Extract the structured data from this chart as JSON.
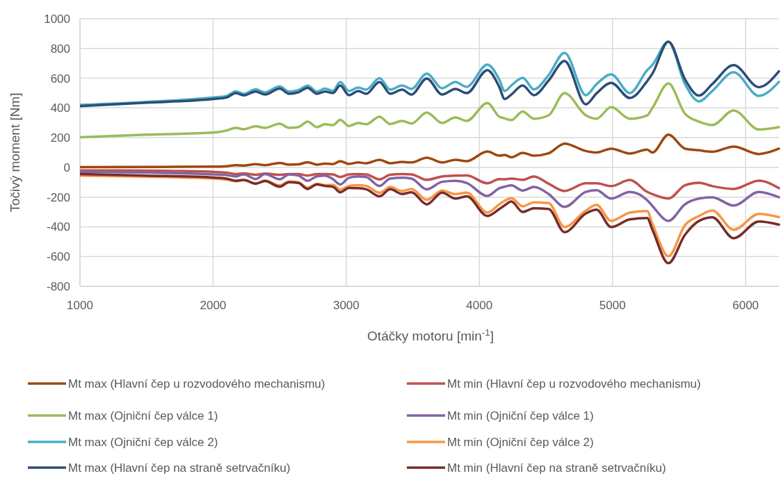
{
  "chart_data": {
    "type": "line",
    "xlabel": "Otáčky motoru [min$^{-1}$]",
    "ylabel": "Točivý moment [Nm]",
    "xlim": [
      1000,
      6250
    ],
    "xticks": [
      1000,
      2000,
      3000,
      4000,
      5000,
      6000
    ],
    "ylim": [
      -800,
      1000
    ],
    "yticks": [
      -800,
      -600,
      -400,
      -200,
      0,
      200,
      400,
      600,
      800,
      1000
    ],
    "grid": true,
    "legend": "bottom",
    "marker": "none",
    "line_style": "solid",
    "x": [
      1000,
      1500,
      2000,
      2100,
      2170,
      2230,
      2320,
      2390,
      2500,
      2570,
      2640,
      2710,
      2780,
      2840,
      2900,
      2955,
      3020,
      3090,
      3150,
      3250,
      3330,
      3420,
      3490,
      3605,
      3720,
      3820,
      3905,
      4060,
      4150,
      4190,
      4240,
      4325,
      4410,
      4520,
      4640,
      4800,
      4880,
      4990,
      5130,
      5260,
      5300,
      5420,
      5545,
      5650,
      5750,
      5910,
      6100,
      6250
    ],
    "series": [
      {
        "name": "Mt max (Hlavní čep u rozvodového mechanismu)",
        "color": "#9e480e",
        "values": [
          2,
          3,
          5,
          8,
          15,
          12,
          22,
          15,
          30,
          18,
          20,
          35,
          18,
          25,
          22,
          42,
          23,
          33,
          28,
          51,
          28,
          37,
          33,
          65,
          33,
          51,
          42,
          107,
          79,
          84,
          68,
          98,
          79,
          95,
          160,
          110,
          100,
          126,
          93,
          120,
          100,
          220,
          126,
          115,
          105,
          140,
          90,
          126
        ]
      },
      {
        "name": "Mt min (Hlavní čep u rozvodového mechanismu)",
        "color": "#c0504d",
        "values": [
          -20,
          -22,
          -30,
          -35,
          -45,
          -40,
          -50,
          -42,
          -50,
          -45,
          -45,
          -55,
          -45,
          -45,
          -47,
          -65,
          -47,
          -45,
          -47,
          -81,
          -50,
          -45,
          -47,
          -84,
          -61,
          -55,
          -54,
          -107,
          -79,
          -80,
          -75,
          -84,
          -61,
          -110,
          -159,
          -107,
          -107,
          -126,
          -85,
          -164,
          -180,
          -210,
          -120,
          -103,
          -126,
          -145,
          -89,
          -140
        ]
      },
      {
        "name": "Mt max (Ojniční čep válce 1)",
        "color": "#9bbb59",
        "values": [
          203,
          220,
          234,
          248,
          266,
          257,
          276,
          266,
          294,
          266,
          271,
          308,
          271,
          290,
          285,
          320,
          278,
          299,
          290,
          341,
          292,
          313,
          295,
          369,
          299,
          336,
          313,
          433,
          341,
          330,
          318,
          376,
          327,
          350,
          500,
          350,
          327,
          406,
          327,
          350,
          400,
          565,
          360,
          308,
          285,
          383,
          255,
          271
        ]
      },
      {
        "name": "Mt min (Ojniční čep válce 1)",
        "color": "#8064a2",
        "values": [
          -30,
          -35,
          -47,
          -52,
          -61,
          -47,
          -79,
          -45,
          -80,
          -48,
          -55,
          -90,
          -60,
          -55,
          -79,
          -115,
          -70,
          -61,
          -65,
          -125,
          -75,
          -70,
          -75,
          -148,
          -97,
          -90,
          -105,
          -192,
          -140,
          -130,
          -121,
          -156,
          -132,
          -179,
          -266,
          -165,
          -154,
          -210,
          -165,
          -220,
          -260,
          -360,
          -248,
          -210,
          -201,
          -257,
          -165,
          -201
        ]
      },
      {
        "name": "Mt max (Ojniční čep válce 2)",
        "color": "#4bacc6",
        "values": [
          420,
          440,
          470,
          480,
          512,
          495,
          525,
          505,
          545,
          510,
          520,
          550,
          510,
          530,
          515,
          575,
          514,
          537,
          523,
          600,
          523,
          551,
          528,
          631,
          533,
          575,
          542,
          692,
          590,
          514,
          551,
          603,
          525,
          621,
          771,
          486,
          560,
          626,
          500,
          654,
          690,
          846,
          560,
          444,
          514,
          640,
          481,
          575
        ]
      },
      {
        "name": "Mt min (Ojniční čep válce 2)",
        "color": "#f79646",
        "values": [
          -55,
          -63,
          -75,
          -82,
          -93,
          -85,
          -107,
          -88,
          -121,
          -95,
          -100,
          -137,
          -110,
          -120,
          -117,
          -150,
          -125,
          -120,
          -125,
          -171,
          -132,
          -159,
          -145,
          -218,
          -156,
          -180,
          -170,
          -304,
          -248,
          -225,
          -207,
          -262,
          -235,
          -240,
          -401,
          -290,
          -252,
          -360,
          -304,
          -294,
          -380,
          -598,
          -388,
          -327,
          -290,
          -420,
          -313,
          -335
        ]
      },
      {
        "name": "Mt max (Hlavní čep na straně setrvačníku)",
        "color": "#2c4d75",
        "values": [
          412,
          435,
          460,
          470,
          500,
          485,
          510,
          490,
          530,
          495,
          505,
          535,
          495,
          510,
          500,
          551,
          486,
          514,
          495,
          575,
          495,
          523,
          490,
          598,
          490,
          528,
          500,
          654,
          540,
          460,
          490,
          551,
          486,
          584,
          716,
          424,
          498,
          569,
          467,
          580,
          631,
          846,
          592,
          483,
          561,
          688,
          540,
          647
        ]
      },
      {
        "name": "Mt min (Hlavní čep na straně setrvačníku)",
        "color": "#772c2a",
        "values": [
          -45,
          -55,
          -68,
          -75,
          -90,
          -85,
          -110,
          -92,
          -130,
          -100,
          -105,
          -145,
          -115,
          -125,
          -131,
          -168,
          -139,
          -140,
          -147,
          -195,
          -147,
          -179,
          -168,
          -249,
          -170,
          -210,
          -195,
          -327,
          -280,
          -255,
          -230,
          -300,
          -275,
          -280,
          -436,
          -310,
          -285,
          -402,
          -350,
          -341,
          -420,
          -645,
          -453,
          -360,
          -336,
          -477,
          -364,
          -385
        ]
      }
    ]
  }
}
